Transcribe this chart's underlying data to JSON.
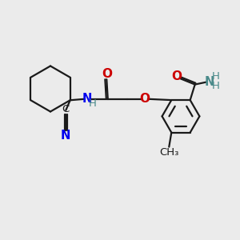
{
  "bg_color": "#ebebeb",
  "bond_color": "#1a1a1a",
  "N_color": "#0000ee",
  "O_color": "#cc0000",
  "NH_color": "#4a8a8a",
  "lw": 1.6,
  "figsize": [
    3.0,
    3.0
  ],
  "dpi": 100,
  "xlim": [
    0,
    10
  ],
  "ylim": [
    0,
    10
  ]
}
